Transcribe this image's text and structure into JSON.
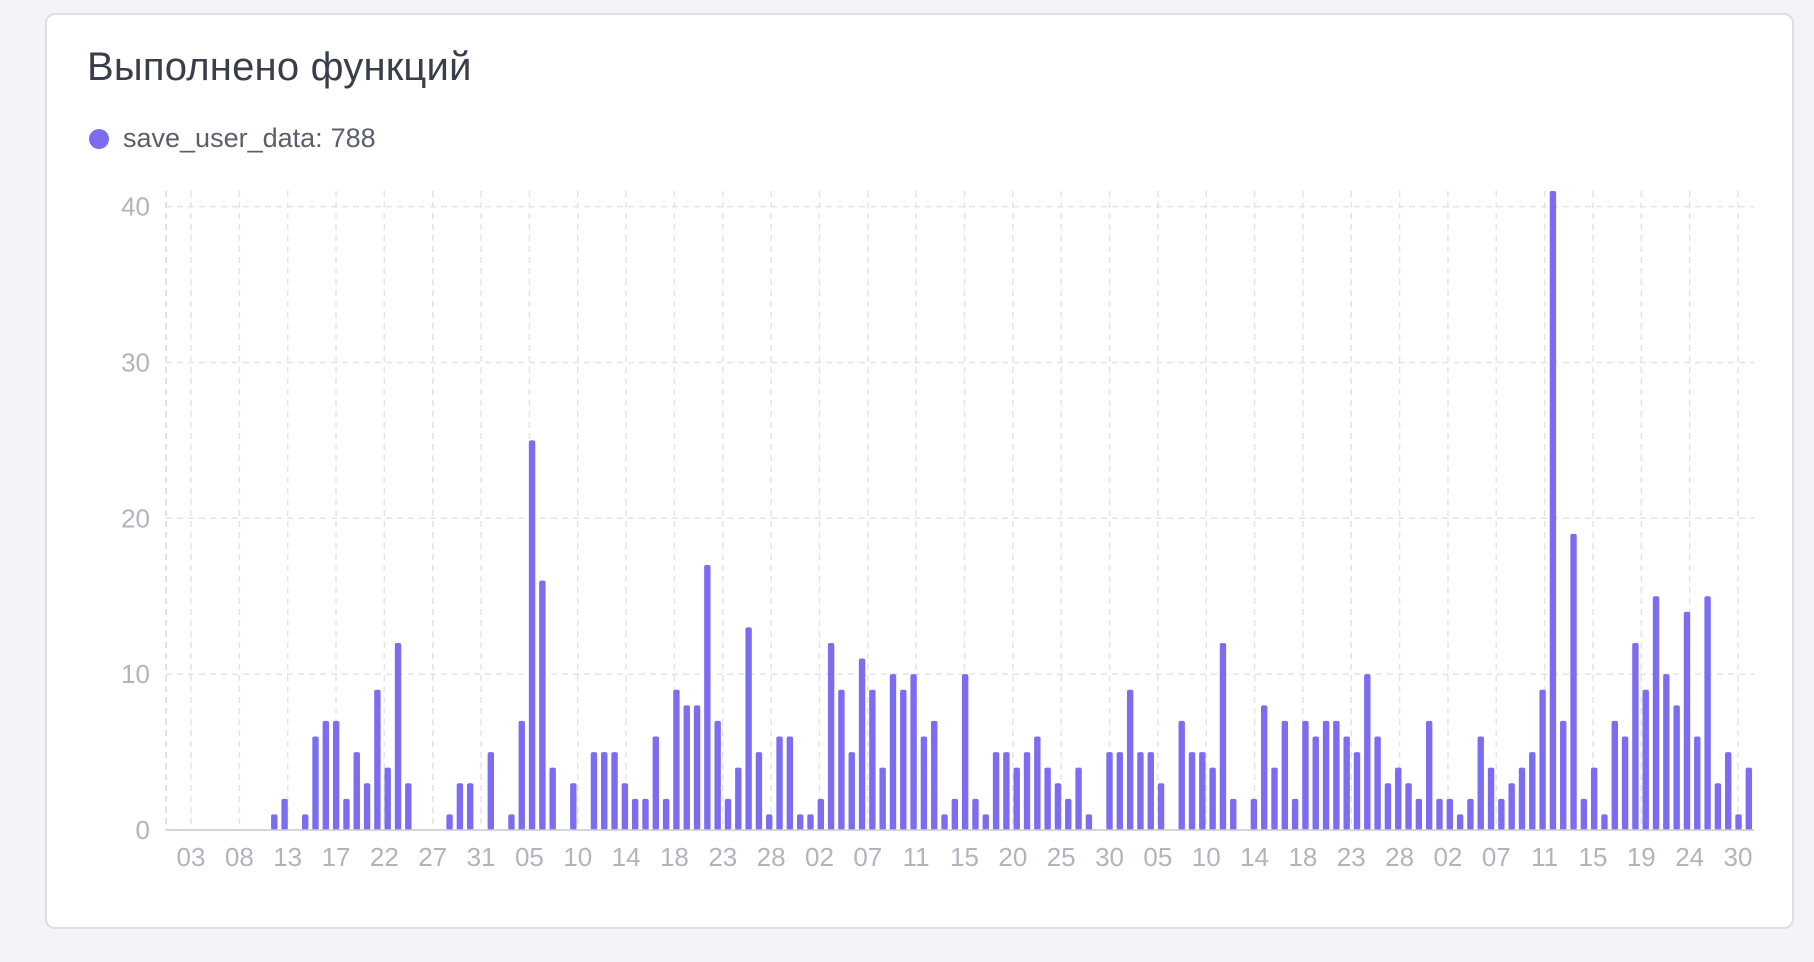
{
  "card": {
    "title": "Выполнено функций",
    "legend": {
      "series_name": "save_user_data:",
      "total": "788",
      "color": "#7b6cf0"
    }
  },
  "chart_data": {
    "type": "bar",
    "title": "Выполнено функций",
    "series": [
      {
        "name": "save_user_data",
        "color": "#7b6cf0",
        "values": [
          0,
          0,
          0,
          0,
          0,
          0,
          0,
          0,
          0,
          0,
          1,
          2,
          0,
          1,
          6,
          7,
          7,
          2,
          5,
          3,
          9,
          4,
          12,
          3,
          0,
          0,
          0,
          1,
          3,
          3,
          0,
          5,
          0,
          1,
          7,
          25,
          16,
          4,
          0,
          3,
          0,
          5,
          5,
          5,
          3,
          2,
          2,
          6,
          2,
          9,
          8,
          8,
          17,
          7,
          2,
          4,
          13,
          5,
          1,
          6,
          6,
          1,
          1,
          2,
          12,
          9,
          5,
          11,
          9,
          4,
          10,
          9,
          10,
          6,
          7,
          1,
          2,
          10,
          2,
          1,
          5,
          5,
          4,
          5,
          6,
          4,
          3,
          2,
          4,
          1,
          0,
          5,
          5,
          9,
          5,
          5,
          3,
          0,
          7,
          5,
          5,
          4,
          12,
          2,
          0,
          2,
          8,
          4,
          7,
          2,
          7,
          6,
          7,
          7,
          6,
          5,
          10,
          6,
          3,
          4,
          3,
          2,
          7,
          2,
          2,
          1,
          2,
          6,
          4,
          2,
          3,
          4,
          5,
          9,
          41,
          7,
          19,
          2,
          4,
          1,
          7,
          6,
          12,
          9,
          15,
          10,
          8,
          14,
          6,
          15,
          3,
          5,
          1,
          4
        ]
      }
    ],
    "x_tick_labels": [
      "03",
      "08",
      "13",
      "17",
      "22",
      "27",
      "31",
      "05",
      "10",
      "14",
      "18",
      "23",
      "28",
      "02",
      "07",
      "11",
      "15",
      "20",
      "25",
      "30",
      "05",
      "10",
      "14",
      "18",
      "23",
      "28",
      "02",
      "07",
      "11",
      "15",
      "19",
      "24",
      "30"
    ],
    "y_ticks": [
      0,
      10,
      20,
      30,
      40
    ],
    "ylim": [
      0,
      41
    ],
    "grid": true,
    "legend_position": "top-left"
  }
}
